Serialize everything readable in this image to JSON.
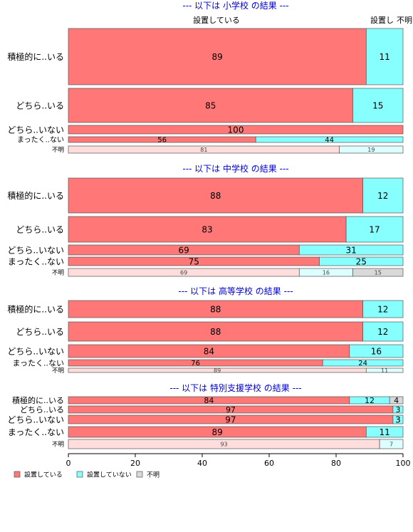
{
  "chart_data": {
    "type": "bar",
    "orientation": "horizontal",
    "stacked": true,
    "percent": true,
    "xlim": [
      0,
      100
    ],
    "x_ticks": [
      0,
      20,
      40,
      60,
      80,
      100
    ],
    "grid": false,
    "legend_position": "bottom-left",
    "colors": {
      "installed": "#ff7777",
      "not_installed": "#88ffff",
      "unknown": "#d9d9d9",
      "installed_light": "#ffdddd",
      "not_installed_light": "#ddffff",
      "title": "#0000cc"
    },
    "legend": [
      {
        "key": "installed",
        "label": "設置している"
      },
      {
        "key": "not_installed",
        "label": "設置していない"
      },
      {
        "key": "unknown",
        "label": "不明"
      }
    ],
    "top_column_labels": [
      "設置している",
      "設置し",
      "不明"
    ],
    "panels": [
      {
        "title": "--- 以下は 小学校 の結果 ---",
        "rows": [
          {
            "label": "積極的に..いる",
            "values": [
              89,
              11,
              0
            ]
          },
          {
            "label": "どちら..いる",
            "values": [
              85,
              15,
              0
            ]
          },
          {
            "label": "どちら..いない",
            "values": [
              100,
              0,
              0
            ]
          },
          {
            "label": "まったく..ない",
            "values": [
              56,
              44,
              0
            ]
          },
          {
            "label": "不明",
            "values": [
              81,
              19,
              0
            ],
            "muted": true
          }
        ]
      },
      {
        "title": "--- 以下は 中学校 の結果 ---",
        "rows": [
          {
            "label": "積極的に..いる",
            "values": [
              88,
              12,
              0
            ]
          },
          {
            "label": "どちら..いる",
            "values": [
              83,
              17,
              0
            ]
          },
          {
            "label": "どちら..いない",
            "values": [
              69,
              31,
              0
            ]
          },
          {
            "label": "まったく..ない",
            "values": [
              75,
              25,
              0
            ]
          },
          {
            "label": "不明",
            "values": [
              69,
              16,
              15
            ],
            "muted": true
          }
        ]
      },
      {
        "title": "--- 以下は 高等学校 の結果 ---",
        "rows": [
          {
            "label": "積極的に..いる",
            "values": [
              88,
              12,
              0
            ]
          },
          {
            "label": "どちら..いる",
            "values": [
              88,
              12,
              0
            ]
          },
          {
            "label": "どちら..いない",
            "values": [
              84,
              16,
              0
            ]
          },
          {
            "label": "まったく..ない",
            "values": [
              76,
              24,
              0
            ]
          },
          {
            "label": "不明",
            "values": [
              89,
              11,
              0
            ],
            "muted": true
          }
        ]
      },
      {
        "title": "--- 以下は 特別支援学校 の結果 ---",
        "rows": [
          {
            "label": "積極的に..いる",
            "values": [
              84,
              12,
              4
            ]
          },
          {
            "label": "どちら..いる",
            "values": [
              97,
              3,
              0
            ]
          },
          {
            "label": "どちら..いない",
            "values": [
              97,
              3,
              0
            ]
          },
          {
            "label": "まったく..ない",
            "values": [
              89,
              11,
              0
            ]
          },
          {
            "label": "不明",
            "values": [
              93,
              7,
              0
            ],
            "muted": true
          }
        ]
      }
    ]
  }
}
